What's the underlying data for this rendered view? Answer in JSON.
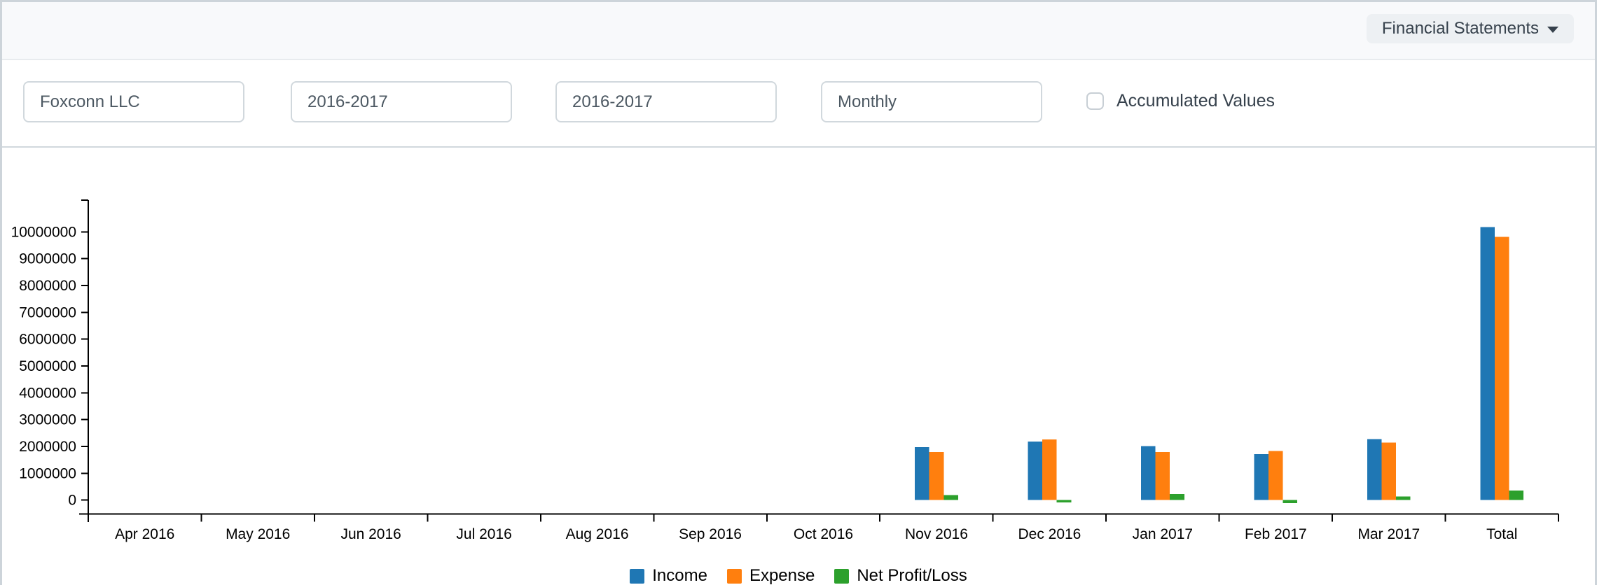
{
  "header": {
    "menu_label": "Financial Statements",
    "caret_icon": "caret-down"
  },
  "filters": {
    "company": {
      "value": "Foxconn LLC"
    },
    "from_fiscal_year": {
      "value": "2016-2017"
    },
    "to_fiscal_year": {
      "value": "2016-2017"
    },
    "periodicity": {
      "value": "Monthly"
    },
    "accumulated_values_label": "Accumulated Values",
    "accumulated_values_checked": false
  },
  "chart_data": {
    "type": "bar",
    "title": "",
    "xlabel": "",
    "ylabel": "",
    "categories": [
      "Apr 2016",
      "May 2016",
      "Jun 2016",
      "Jul 2016",
      "Aug 2016",
      "Sep 2016",
      "Oct 2016",
      "Nov 2016",
      "Dec 2016",
      "Jan 2017",
      "Feb 2017",
      "Mar 2017",
      "Total"
    ],
    "series": [
      {
        "name": "Income",
        "color": "#1f77b4",
        "values": [
          0,
          0,
          0,
          0,
          0,
          0,
          0,
          1980000,
          2180000,
          2020000,
          1720000,
          2280000,
          10180000
        ]
      },
      {
        "name": "Expense",
        "color": "#ff7f0e",
        "values": [
          0,
          0,
          0,
          0,
          0,
          0,
          0,
          1790000,
          2260000,
          1790000,
          1830000,
          2150000,
          9820000
        ]
      },
      {
        "name": "Net Profit/Loss",
        "color": "#2ca02c",
        "values": [
          0,
          0,
          0,
          0,
          0,
          0,
          0,
          190000,
          -80000,
          230000,
          -110000,
          130000,
          360000
        ]
      }
    ],
    "ylim": [
      0,
      10000000
    ],
    "ytick_step": 1000000,
    "yticks": [
      0,
      1000000,
      2000000,
      3000000,
      4000000,
      5000000,
      6000000,
      7000000,
      8000000,
      9000000,
      10000000
    ],
    "grid": false,
    "legend_position": "bottom",
    "axis_color": "#000000"
  }
}
